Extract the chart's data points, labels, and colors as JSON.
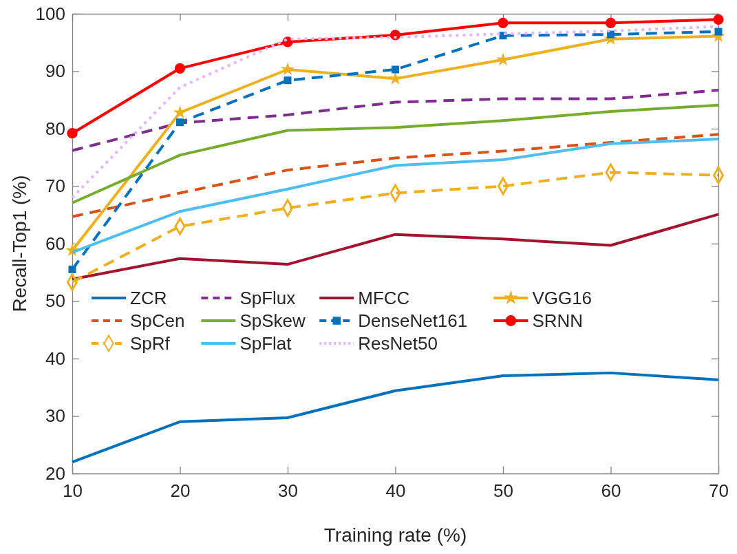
{
  "chart_data": {
    "type": "line",
    "xlabel": "Training rate (%)",
    "ylabel": "Recall-Top1 (%)",
    "x": [
      10,
      20,
      30,
      40,
      50,
      60,
      70
    ],
    "xlim": [
      10,
      70
    ],
    "xticks": [
      10,
      20,
      30,
      40,
      50,
      60,
      70
    ],
    "ylim": [
      20,
      100
    ],
    "yticks": [
      20,
      30,
      40,
      50,
      60,
      70,
      80,
      90,
      100
    ],
    "grid": false,
    "legend": "center",
    "series": [
      {
        "name": "ZCR",
        "color": "#0072bd",
        "line_style": "solid",
        "marker": "none",
        "values": [
          22,
          29,
          29.7,
          34.4,
          37,
          37.5,
          36.3
        ]
      },
      {
        "name": "SpFlux",
        "color": "#7e2f8e",
        "line_style": "dashed",
        "marker": "none",
        "values": [
          76.2,
          81,
          82.4,
          84.6,
          85.2,
          85.2,
          86.7
        ]
      },
      {
        "name": "MFCC",
        "color": "#a2142f",
        "line_style": "solid",
        "marker": "none",
        "values": [
          53.8,
          57.4,
          56.4,
          61.6,
          60.8,
          59.7,
          65.1
        ]
      },
      {
        "name": "VGG16",
        "color": "#edb120",
        "line_style": "solid",
        "marker": "star",
        "values": [
          58.8,
          82.8,
          90.3,
          88.7,
          92,
          95.6,
          96.1
        ]
      },
      {
        "name": "SpCen",
        "color": "#d95319",
        "line_style": "dashed",
        "marker": "none",
        "values": [
          64.7,
          68.8,
          72.8,
          74.9,
          76.1,
          77.6,
          79
        ]
      },
      {
        "name": "SpSkew",
        "color": "#77ac30",
        "line_style": "solid",
        "marker": "none",
        "values": [
          67.1,
          75.4,
          79.7,
          80.2,
          81.4,
          83,
          84.1
        ]
      },
      {
        "name": "DenseNet161",
        "color": "#0072bd",
        "line_style": "dashed",
        "marker": "square",
        "values": [
          55.5,
          81.1,
          88.4,
          90.3,
          96.2,
          96.4,
          96.9
        ]
      },
      {
        "name": "SRNN",
        "color": "#ff0000",
        "line_style": "solid",
        "marker": "circle",
        "values": [
          79.2,
          90.5,
          95.1,
          96.3,
          98.4,
          98.4,
          99
        ]
      },
      {
        "name": "SpRf",
        "color": "#edb120",
        "line_style": "dashed",
        "marker": "diamond",
        "values": [
          53.3,
          63,
          66.2,
          68.8,
          70,
          72.4,
          71.9
        ]
      },
      {
        "name": "SpFlat",
        "color": "#4dbeee",
        "line_style": "solid",
        "marker": "none",
        "values": [
          58.5,
          65.6,
          69.5,
          73.6,
          74.6,
          77.4,
          78.2
        ]
      },
      {
        "name": "ResNet50",
        "color": "#dfb8ff",
        "line_style": "dotted",
        "marker": "none",
        "values": [
          68,
          87.2,
          95.6,
          95.9,
          96.5,
          97,
          97.8
        ]
      }
    ]
  }
}
